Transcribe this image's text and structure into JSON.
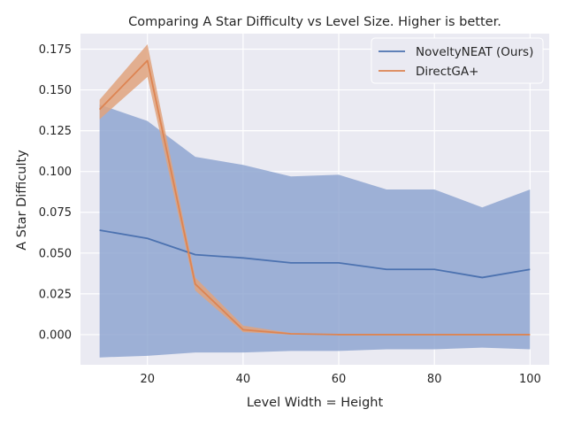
{
  "chart_data": {
    "type": "line",
    "title": "Comparing A Star Difficulty  vs Level Size. Higher is better.",
    "xlabel": "Level Width = Height",
    "ylabel": "A Star Difficulty",
    "xlim": [
      6,
      104
    ],
    "ylim": [
      -0.0185,
      0.1845
    ],
    "xticks": [
      20,
      40,
      60,
      80,
      100
    ],
    "yticks": [
      0.0,
      0.025,
      0.05,
      0.075,
      0.1,
      0.125,
      0.15,
      0.175
    ],
    "ytick_labels": [
      "0.000",
      "0.025",
      "0.050",
      "0.075",
      "0.100",
      "0.125",
      "0.150",
      "0.175"
    ],
    "xtick_labels": [
      "20",
      "40",
      "60",
      "80",
      "100"
    ],
    "grid": true,
    "background": "#eaeaf2",
    "legend_position": "top-right",
    "x": [
      10,
      20,
      30,
      40,
      50,
      60,
      70,
      80,
      90,
      100
    ],
    "series": [
      {
        "name": "NoveltyNEAT (Ours)",
        "color": "#4c72b0",
        "band_color": "#8ca3cf",
        "values": [
          0.064,
          0.059,
          0.049,
          0.047,
          0.044,
          0.044,
          0.04,
          0.04,
          0.035,
          0.04
        ],
        "lower": [
          -0.014,
          -0.013,
          -0.011,
          -0.011,
          -0.01,
          -0.01,
          -0.009,
          -0.009,
          -0.008,
          -0.009
        ],
        "upper": [
          0.141,
          0.131,
          0.109,
          0.104,
          0.097,
          0.098,
          0.089,
          0.089,
          0.078,
          0.089
        ]
      },
      {
        "name": "DirectGA+",
        "color": "#dd8452",
        "band_color": "#e0a37e",
        "values": [
          0.138,
          0.168,
          0.031,
          0.003,
          0.0005,
          0.0,
          0.0,
          0.0,
          0.0,
          0.0
        ],
        "lower": [
          0.132,
          0.158,
          0.027,
          0.0015,
          0.0,
          0.0,
          0.0,
          0.0,
          0.0,
          0.0
        ],
        "upper": [
          0.144,
          0.178,
          0.035,
          0.0055,
          0.001,
          0.0,
          0.0,
          0.0,
          0.0,
          0.0
        ]
      }
    ]
  }
}
